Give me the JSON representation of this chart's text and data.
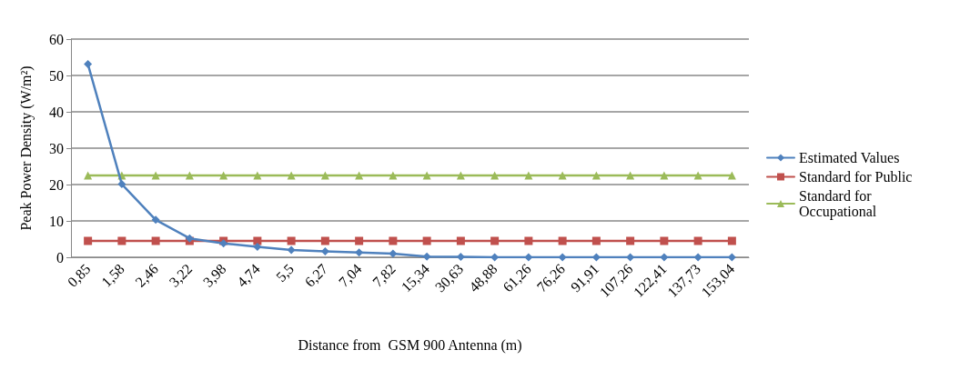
{
  "chart_data": {
    "type": "line",
    "xlabel": "Distance from  GSM 900 Antenna (m)",
    "ylabel": "Peak Power Density (W/m²)",
    "categories": [
      "0,85",
      "1,58",
      "2,46",
      "3,22",
      "3,98",
      "4,74",
      "5,5",
      "6,27",
      "7,04",
      "7,82",
      "15,34",
      "30,63",
      "48,88",
      "61,26",
      "76,26",
      "91,91",
      "107,26",
      "122,41",
      "137,73",
      "153,04"
    ],
    "series": [
      {
        "name": "Estimated Values",
        "color": "#4f81bd",
        "marker": "diamond",
        "values": [
          53.1,
          20.1,
          10.3,
          5.2,
          3.8,
          2.9,
          2.0,
          1.6,
          1.3,
          1.0,
          0.2,
          0.1,
          0,
          0,
          0,
          0,
          0,
          0,
          0,
          0
        ]
      },
      {
        "name": "Standard for Public",
        "color": "#c0504d",
        "marker": "square",
        "values": [
          4.5,
          4.5,
          4.5,
          4.5,
          4.5,
          4.5,
          4.5,
          4.5,
          4.5,
          4.5,
          4.5,
          4.5,
          4.5,
          4.5,
          4.5,
          4.5,
          4.5,
          4.5,
          4.5,
          4.5
        ]
      },
      {
        "name": "Standard for Occupational",
        "color": "#9bbb59",
        "marker": "triangle",
        "values": [
          22.5,
          22.5,
          22.5,
          22.5,
          22.5,
          22.5,
          22.5,
          22.5,
          22.5,
          22.5,
          22.5,
          22.5,
          22.5,
          22.5,
          22.5,
          22.5,
          22.5,
          22.5,
          22.5,
          22.5
        ]
      }
    ],
    "ylim": [
      0,
      60
    ],
    "yticks": [
      0,
      10,
      20,
      30,
      40,
      50,
      60
    ],
    "grid": "y",
    "legend": "right",
    "line_style": "solid"
  }
}
